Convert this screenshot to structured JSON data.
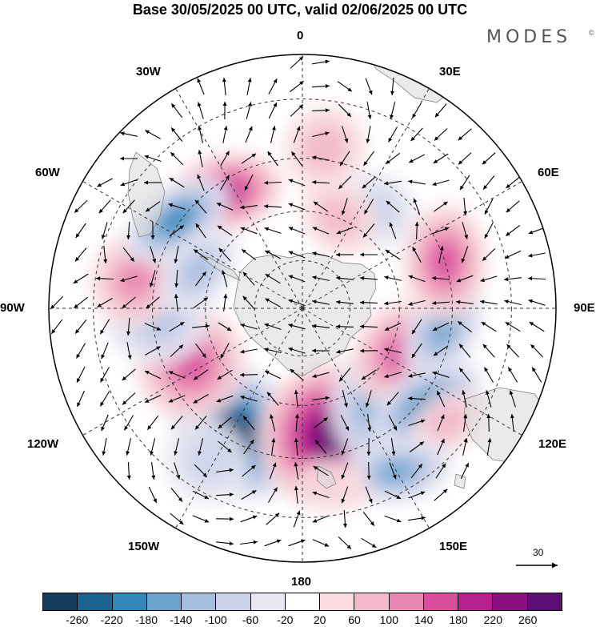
{
  "title": "Base 30/05/2025 00 UTC, valid 02/06/2025 00 UTC",
  "brand": "MODES",
  "brand_mark": "©",
  "projection": "south-polar-stereographic",
  "longitude_labels": [
    {
      "text": "0",
      "lon": 0
    },
    {
      "text": "30E",
      "lon": 30
    },
    {
      "text": "60E",
      "lon": 60
    },
    {
      "text": "90E",
      "lon": 90
    },
    {
      "text": "120E",
      "lon": 120
    },
    {
      "text": "150E",
      "lon": 150
    },
    {
      "text": "180",
      "lon": 180
    },
    {
      "text": "150W",
      "lon": -150
    },
    {
      "text": "120W",
      "lon": -120
    },
    {
      "text": "90W",
      "lon": -90
    },
    {
      "text": "60W",
      "lon": -60
    },
    {
      "text": "30W",
      "lon": -30
    }
  ],
  "reference_vector": {
    "value": "30"
  },
  "colorbar": {
    "colors": [
      "#123b5c",
      "#1b6290",
      "#3286bb",
      "#6aa4cf",
      "#a8bedf",
      "#cdd4ea",
      "#e8e7f2",
      "#ffffff",
      "#f8dcdf",
      "#f3b8c9",
      "#e987b1",
      "#d94f9e",
      "#b51f8e",
      "#8a1080",
      "#5c0e72"
    ],
    "ticks": [
      "-260",
      "-220",
      "-180",
      "-140",
      "-100",
      "-60",
      "-20",
      "20",
      "60",
      "100",
      "140",
      "180",
      "220",
      "260"
    ]
  },
  "anomaly_centers": [
    {
      "lat": -48,
      "lon": -152,
      "value": -270
    },
    {
      "lat": -50,
      "lon": 167,
      "value": 260
    },
    {
      "lat": -48,
      "lon": 135,
      "value": -240
    },
    {
      "lat": -56,
      "lon": 114,
      "value": 170
    },
    {
      "lat": -47,
      "lon": 98,
      "value": -160
    },
    {
      "lat": -43,
      "lon": 128,
      "value": -200
    },
    {
      "lat": -45,
      "lon": 72,
      "value": 170
    },
    {
      "lat": -52,
      "lon": -116,
      "value": 170
    },
    {
      "lat": -46,
      "lon": -92,
      "value": -130
    },
    {
      "lat": -40,
      "lon": -80,
      "value": 120
    },
    {
      "lat": -48,
      "lon": -34,
      "value": 180
    },
    {
      "lat": -44,
      "lon": -55,
      "value": -180
    },
    {
      "lat": -56,
      "lon": -70,
      "value": -110
    },
    {
      "lat": -52,
      "lon": 38,
      "value": -60
    },
    {
      "lat": -42,
      "lon": 8,
      "value": 70
    },
    {
      "lat": -37,
      "lon": -148,
      "value": -80
    },
    {
      "lat": -36,
      "lon": 128,
      "value": 60
    },
    {
      "lat": -35,
      "lon": 150,
      "value": -160
    },
    {
      "lat": -38,
      "lon": 170,
      "value": 50
    },
    {
      "lat": -60,
      "lon": 22,
      "value": 70
    }
  ]
}
